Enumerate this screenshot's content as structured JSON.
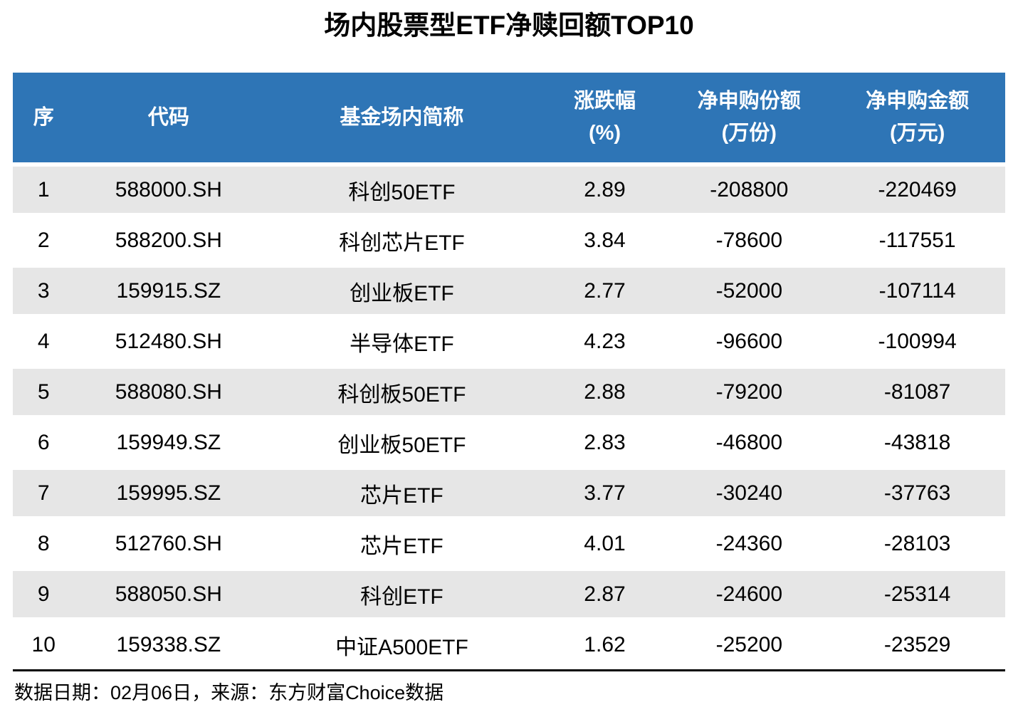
{
  "page_title": "场内股票型ETF净赎回额TOP10",
  "colors": {
    "header_bg": "#2E75B6",
    "stripe_bg": "#E6E6E6",
    "header_text": "#FFFFFF",
    "body_text": "#000000",
    "bottom_rule": "#000000"
  },
  "chart_data": {
    "type": "table",
    "title": "场内股票型ETF净赎回额TOP10",
    "columns": [
      {
        "label": "序",
        "unit": ""
      },
      {
        "label": "代码",
        "unit": ""
      },
      {
        "label": "基金场内简称",
        "unit": ""
      },
      {
        "label": "涨跌幅",
        "unit": "(%)"
      },
      {
        "label": "净申购份额",
        "unit": "(万份)"
      },
      {
        "label": "净申购金额",
        "unit": "(万元)"
      }
    ],
    "rows": [
      [
        "1",
        "588000.SH",
        "科创50ETF",
        "2.89",
        "-208800",
        "-220469"
      ],
      [
        "2",
        "588200.SH",
        "科创芯片ETF",
        "3.84",
        "-78600",
        "-117551"
      ],
      [
        "3",
        "159915.SZ",
        "创业板ETF",
        "2.77",
        "-52000",
        "-107114"
      ],
      [
        "4",
        "512480.SH",
        "半导体ETF",
        "4.23",
        "-96600",
        "-100994"
      ],
      [
        "5",
        "588080.SH",
        "科创板50ETF",
        "2.88",
        "-79200",
        "-81087"
      ],
      [
        "6",
        "159949.SZ",
        "创业板50ETF",
        "2.83",
        "-46800",
        "-43818"
      ],
      [
        "7",
        "159995.SZ",
        "芯片ETF",
        "3.77",
        "-30240",
        "-37763"
      ],
      [
        "8",
        "512760.SH",
        "芯片ETF",
        "4.01",
        "-24360",
        "-28103"
      ],
      [
        "9",
        "588050.SH",
        "科创ETF",
        "2.87",
        "-24600",
        "-25314"
      ],
      [
        "10",
        "159338.SZ",
        "中证A500ETF",
        "1.62",
        "-25200",
        "-23529"
      ]
    ]
  },
  "footer": {
    "source_note": "数据日期：02月06日，来源：东方财富Choice数据"
  }
}
